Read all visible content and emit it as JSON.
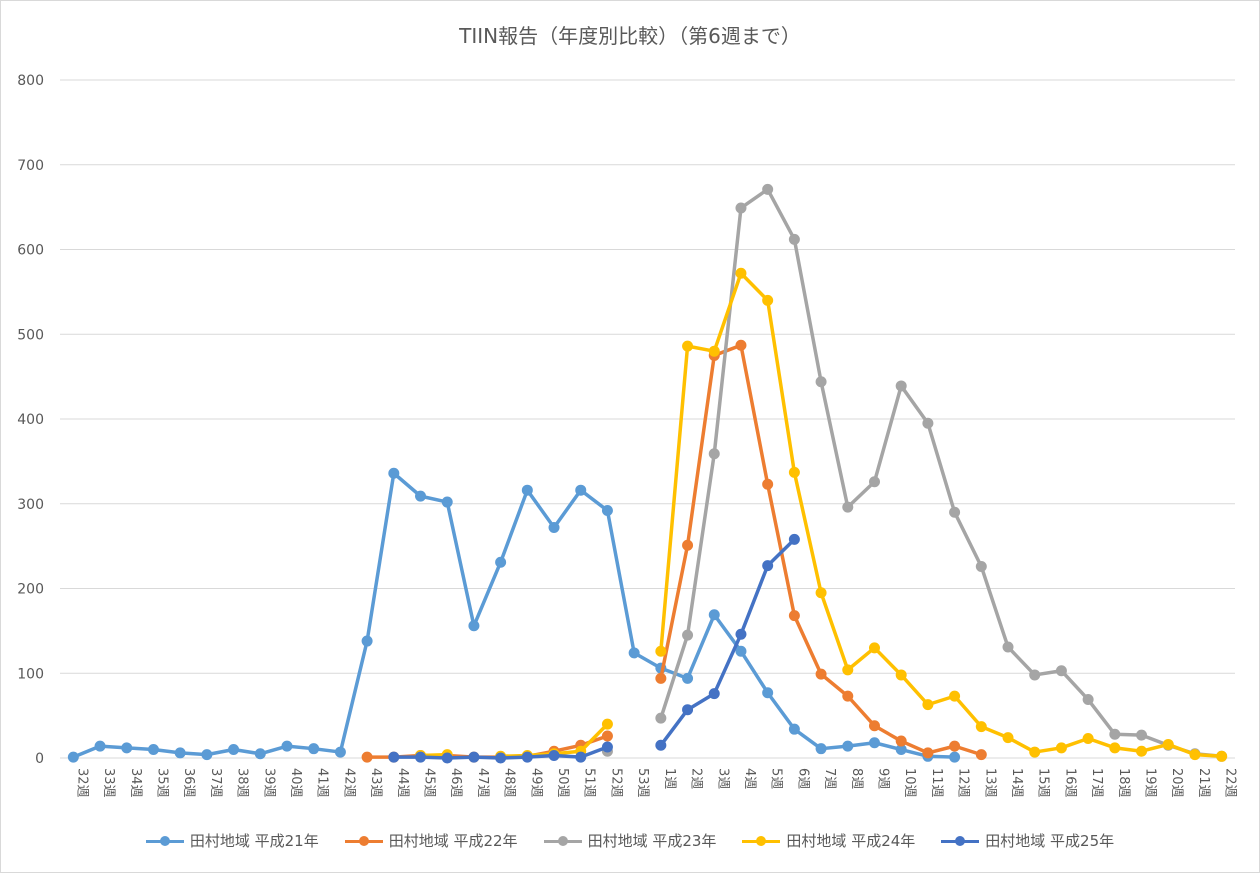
{
  "chart_data": {
    "type": "line",
    "title": "TIIN報告（年度別比較）（第6週まで）",
    "xlabel": "",
    "ylabel": "",
    "ylim": [
      0,
      800
    ],
    "yticks": [
      0,
      100,
      200,
      300,
      400,
      500,
      600,
      700,
      800
    ],
    "grid": true,
    "legend_position": "bottom",
    "categories": [
      "32週",
      "33週",
      "34週",
      "35週",
      "36週",
      "37週",
      "38週",
      "39週",
      "40週",
      "41週",
      "42週",
      "43週",
      "44週",
      "45週",
      "46週",
      "47週",
      "48週",
      "49週",
      "50週",
      "51週",
      "52週",
      "53週",
      "1週",
      "2週",
      "3週",
      "4週",
      "5週",
      "6週",
      "7週",
      "8週",
      "9週",
      "10週",
      "11週",
      "12週",
      "13週",
      "14週",
      "15週",
      "16週",
      "17週",
      "18週",
      "19週",
      "20週",
      "21週",
      "22週"
    ],
    "series": [
      {
        "name": "田村地域 平成21年",
        "color": "#5B9BD5",
        "values": [
          1,
          14,
          12,
          10,
          6,
          4,
          10,
          5,
          14,
          11,
          7,
          138,
          336,
          309,
          302,
          156,
          231,
          316,
          272,
          316,
          292,
          124,
          106,
          94,
          169,
          126,
          77,
          34,
          11,
          14,
          18,
          10,
          2,
          1,
          null,
          null,
          null,
          null,
          null,
          null,
          null,
          null,
          null,
          null
        ]
      },
      {
        "name": "田村地域 平成22年",
        "color": "#ED7D31",
        "values": [
          null,
          null,
          null,
          null,
          null,
          null,
          null,
          null,
          null,
          null,
          null,
          1,
          1,
          3,
          3,
          1,
          1,
          2,
          8,
          15,
          26,
          null,
          94,
          251,
          475,
          487,
          323,
          168,
          99,
          73,
          38,
          20,
          6,
          14,
          4,
          null,
          null,
          null,
          null,
          null,
          null,
          null,
          null,
          null
        ]
      },
      {
        "name": "田村地域 平成23年",
        "color": "#A5A5A5",
        "values": [
          null,
          null,
          null,
          null,
          null,
          null,
          null,
          null,
          null,
          null,
          null,
          null,
          null,
          null,
          null,
          null,
          null,
          null,
          null,
          null,
          8,
          null,
          47,
          145,
          359,
          649,
          671,
          612,
          444,
          296,
          326,
          439,
          395,
          290,
          226,
          131,
          98,
          103,
          69,
          28,
          27,
          15,
          5,
          2
        ]
      },
      {
        "name": "田村地域 平成24年",
        "color": "#FFC000",
        "values": [
          null,
          null,
          null,
          null,
          null,
          null,
          null,
          null,
          null,
          null,
          null,
          null,
          null,
          3,
          4,
          null,
          2,
          3,
          5,
          8,
          40,
          null,
          126,
          486,
          480,
          572,
          540,
          337,
          195,
          104,
          130,
          98,
          63,
          73,
          37,
          24,
          7,
          12,
          23,
          12,
          8,
          16,
          4,
          2
        ]
      },
      {
        "name": "田村地域 平成25年",
        "color": "#4472C4",
        "values": [
          null,
          null,
          null,
          null,
          null,
          null,
          null,
          null,
          null,
          null,
          null,
          null,
          1,
          1,
          0,
          1,
          0,
          1,
          3,
          1,
          13,
          null,
          15,
          57,
          76,
          146,
          227,
          258,
          null,
          null,
          null,
          null,
          null,
          null,
          null,
          null,
          null,
          null,
          null,
          null,
          null,
          null,
          null,
          null
        ]
      }
    ]
  }
}
